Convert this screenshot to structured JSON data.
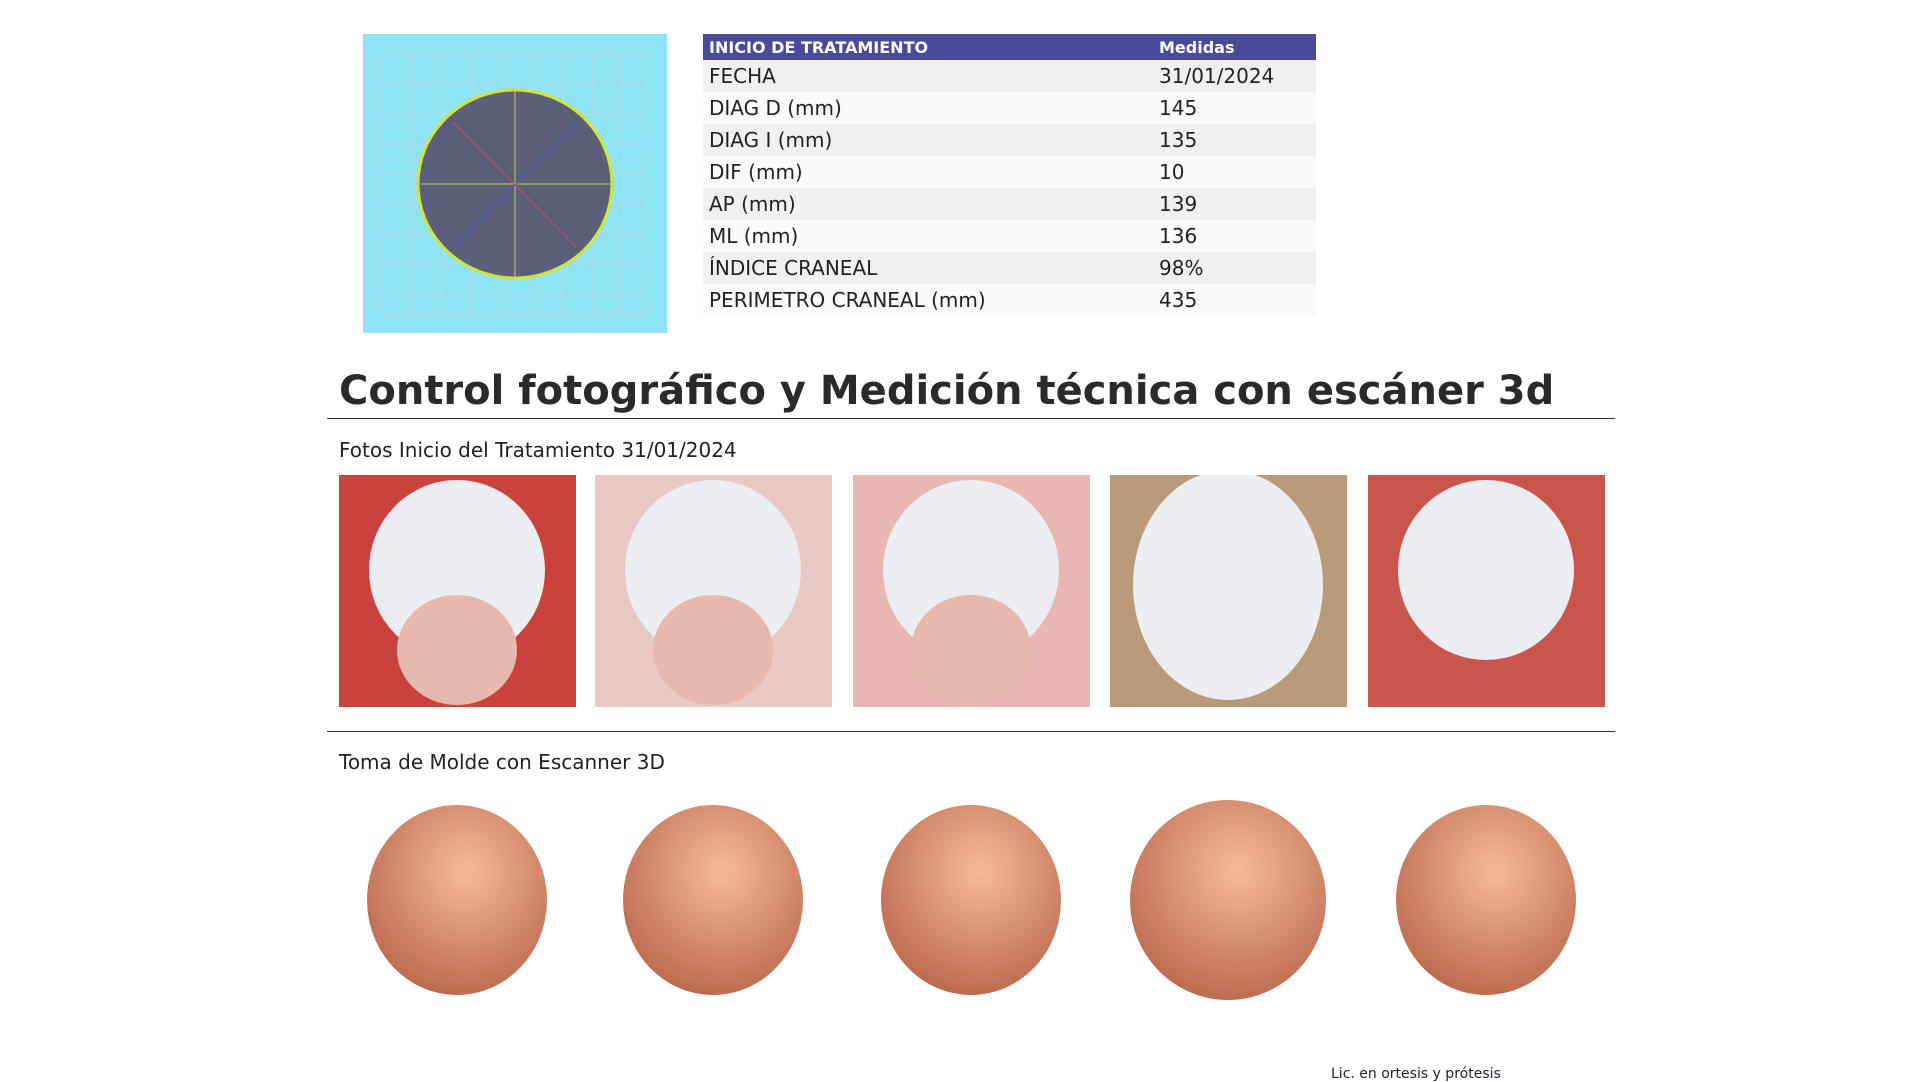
{
  "table": {
    "header": [
      "INICIO DE TRATAMIENTO",
      "Medidas"
    ],
    "rows": [
      [
        "FECHA",
        "31/01/2024"
      ],
      [
        "DIAG D (mm)",
        "145"
      ],
      [
        "DIAG I (mm)",
        "135"
      ],
      [
        "DIF (mm)",
        "10"
      ],
      [
        "AP (mm)",
        "139"
      ],
      [
        "ML (mm)",
        "136"
      ],
      [
        "ÍNDICE CRANEAL",
        "98%"
      ],
      [
        "PERIMETRO CRANEAL (mm)",
        "435"
      ]
    ]
  },
  "section": {
    "title": "Control fotográfico y Medición técnica con escáner 3d",
    "photos_caption": "Fotos Inicio del Tratamiento 31/01/2024",
    "scans_caption": "Toma de Molde con Escanner 3D"
  },
  "signature": {
    "text": "Lic. en ortesis y prótesis"
  }
}
